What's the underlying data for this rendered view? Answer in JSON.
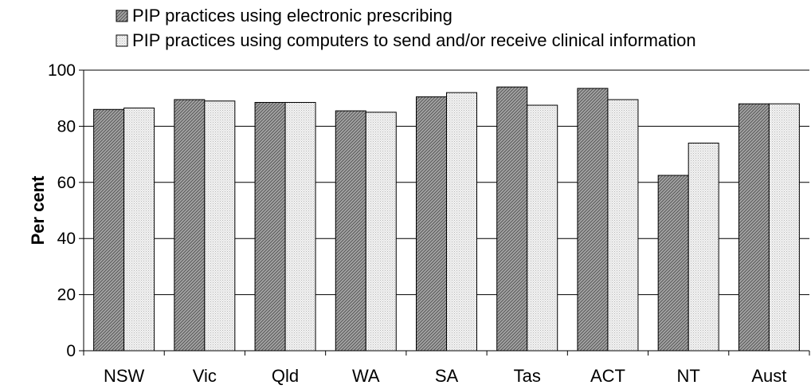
{
  "chart_data": {
    "type": "bar",
    "title": "",
    "xlabel": "",
    "ylabel": "Per cent",
    "ylim": [
      0,
      100
    ],
    "yticks": [
      0,
      20,
      40,
      60,
      80,
      100
    ],
    "grid": true,
    "legend_position": "top",
    "categories": [
      "NSW",
      "Vic",
      "Qld",
      "WA",
      "SA",
      "Tas",
      "ACT",
      "NT",
      "Aust"
    ],
    "series": [
      {
        "name": "PIP practices using electronic prescribing",
        "pattern": "dark-hatch",
        "values": [
          86,
          89.5,
          88.5,
          85.5,
          90.5,
          94,
          93.5,
          62.5,
          88
        ]
      },
      {
        "name": "PIP practices using computers to send and/or receive clinical information",
        "pattern": "light-dots",
        "values": [
          86.5,
          89,
          88.5,
          85,
          92,
          87.5,
          89.5,
          74,
          88
        ]
      }
    ]
  }
}
